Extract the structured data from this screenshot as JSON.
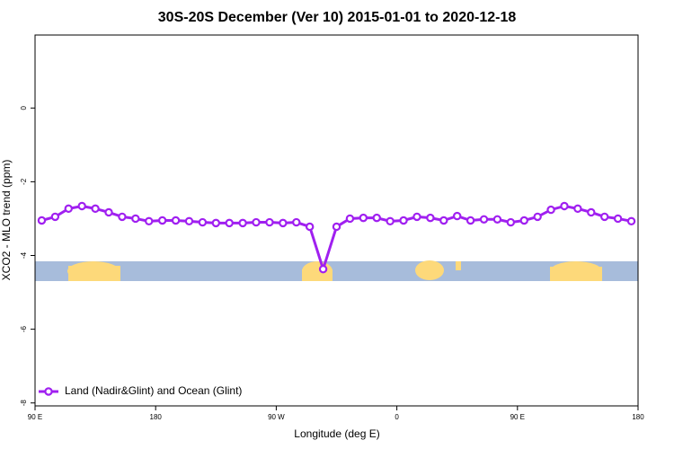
{
  "chart_data": {
    "type": "line",
    "title": "30S-20S December (Ver 10)   2015-01-01 to 2020-12-18",
    "x_label": "Longitude (deg E)",
    "y_label": "XCO2 - MLO trend (ppm)",
    "x": [
      95,
      105,
      115,
      125,
      135,
      145,
      155,
      165,
      175,
      185,
      195,
      205,
      215,
      225,
      235,
      245,
      255,
      265,
      275,
      285,
      295,
      305,
      315,
      325,
      335,
      345,
      355,
      365,
      375,
      385,
      395,
      405,
      415,
      425,
      435,
      445,
      455,
      465,
      475,
      485,
      495,
      505,
      515,
      525,
      535
    ],
    "series": [
      {
        "name": "Land (Nadir&Glint) and Ocean (Glint)",
        "color": "#a020f0",
        "values": [
          -3.05,
          -2.95,
          -2.73,
          -2.66,
          -2.73,
          -2.83,
          -2.95,
          -3.0,
          -3.07,
          -3.05,
          -3.05,
          -3.07,
          -3.1,
          -3.12,
          -3.12,
          -3.12,
          -3.1,
          -3.1,
          -3.12,
          -3.1,
          -3.22,
          -4.37,
          -3.22,
          -3.0,
          -2.98,
          -2.98,
          -3.07,
          -3.05,
          -2.95,
          -2.98,
          -3.05,
          -2.93,
          -3.05,
          -3.02,
          -3.02,
          -3.1,
          -3.05,
          -2.95,
          -2.76,
          -2.66,
          -2.73,
          -2.83,
          -2.95,
          -3.0,
          -3.07
        ]
      }
    ],
    "xlim": [
      90,
      540
    ],
    "xticks": [
      {
        "value": 90,
        "label": "90 E"
      },
      {
        "value": 180,
        "label": "180"
      },
      {
        "value": 270,
        "label": "90 W"
      },
      {
        "value": 360,
        "label": "0"
      },
      {
        "value": 450,
        "label": "90 E"
      },
      {
        "value": 540,
        "label": "180"
      }
    ],
    "ylim": [
      -8.08,
      1.98
    ],
    "yticks": [
      -8,
      -6,
      -4,
      -2,
      0
    ],
    "legend": "bottom-left"
  }
}
